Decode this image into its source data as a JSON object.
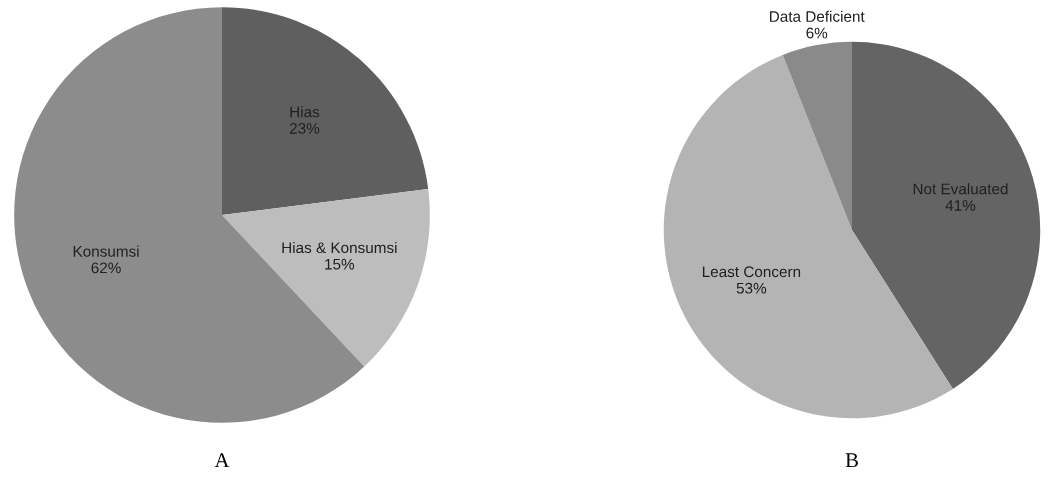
{
  "chart_data": [
    {
      "type": "pie",
      "categories": [
        "Hias",
        "Hias & Konsumsi",
        "Konsumsi"
      ],
      "values": [
        23,
        15,
        62
      ],
      "colors": [
        "#5f5f5f",
        "#bdbdbd",
        "#8c8c8c"
      ],
      "value_labels": [
        "23%",
        "15%",
        "62%"
      ],
      "annotations": [
        "A"
      ]
    },
    {
      "type": "pie",
      "categories": [
        "Not Evaluated",
        "Least Concern",
        "Data Deficient"
      ],
      "values": [
        41,
        53,
        6
      ],
      "colors": [
        "#646464",
        "#b4b4b4",
        "#8a8a8a"
      ],
      "value_labels": [
        "41%",
        "53%",
        "6%"
      ],
      "annotations": [
        "B"
      ]
    }
  ]
}
